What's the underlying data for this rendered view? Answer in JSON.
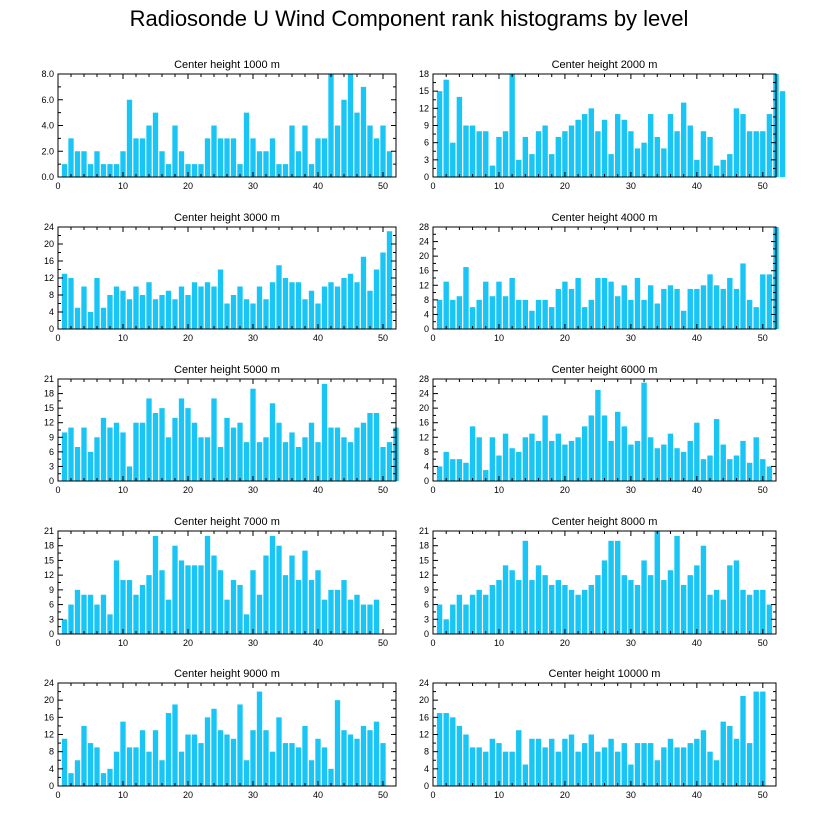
{
  "title": "Radiosonde U Wind Component rank histograms by level",
  "colors": {
    "bar": "#19c5f5",
    "axis": "#000000",
    "background": "#ffffff"
  },
  "chart_data": [
    {
      "type": "bar",
      "title": "Center height 1000 m",
      "xlim": [
        0,
        52
      ],
      "ylim": [
        0,
        8
      ],
      "xticks": [
        0,
        10,
        20,
        30,
        40,
        50
      ],
      "yticks": [
        0,
        2,
        4,
        6,
        8
      ],
      "ytick_labels": [
        "0.0",
        "2.0",
        "4.0",
        "6.0",
        "8.0"
      ],
      "values": [
        1,
        3,
        2,
        2,
        1,
        2,
        1,
        1,
        1,
        2,
        6,
        3,
        3,
        4,
        5,
        2,
        1,
        4,
        2,
        1,
        1,
        1,
        3,
        4,
        3,
        3,
        3,
        1,
        5,
        3,
        2,
        2,
        3,
        1,
        1,
        4,
        2,
        4,
        1,
        3,
        3,
        8,
        4,
        6,
        8,
        5,
        7,
        4,
        3,
        4,
        2
      ]
    },
    {
      "type": "bar",
      "title": "Center height 2000 m",
      "xlim": [
        0,
        52
      ],
      "ylim": [
        0,
        18
      ],
      "xticks": [
        0,
        10,
        20,
        30,
        40,
        50
      ],
      "yticks": [
        0,
        3,
        6,
        9,
        12,
        15,
        18
      ],
      "ytick_labels": [
        "0",
        "3",
        "6",
        "9",
        "12",
        "15",
        "18"
      ],
      "values": [
        15,
        17,
        6,
        14,
        9,
        9,
        8,
        8,
        2,
        7,
        8,
        18,
        3,
        7,
        4,
        8,
        9,
        4,
        7,
        8,
        9,
        10,
        11,
        12,
        8,
        10,
        4,
        11,
        10,
        8,
        5,
        6,
        11,
        7,
        5,
        11,
        8,
        13,
        9,
        3,
        8,
        7,
        2,
        3,
        4,
        12,
        11,
        8,
        8,
        8,
        11,
        18,
        15
      ]
    },
    {
      "type": "bar",
      "title": "Center height 3000 m",
      "xlim": [
        0,
        52
      ],
      "ylim": [
        0,
        24
      ],
      "xticks": [
        0,
        10,
        20,
        30,
        40,
        50
      ],
      "yticks": [
        0,
        4,
        8,
        12,
        16,
        20,
        24
      ],
      "ytick_labels": [
        "0",
        "4",
        "8",
        "12",
        "16",
        "20",
        "24"
      ],
      "values": [
        13,
        12,
        5,
        10,
        4,
        12,
        5,
        8,
        10,
        9,
        7,
        10,
        8,
        11,
        7,
        8,
        9,
        7,
        10,
        8,
        11,
        10,
        11,
        10,
        14,
        6,
        8,
        10,
        7,
        6,
        10,
        7,
        11,
        15,
        12,
        11,
        11,
        7,
        9,
        6,
        10,
        11,
        10,
        12,
        13,
        11,
        17,
        9,
        14,
        18,
        23
      ]
    },
    {
      "type": "bar",
      "title": "Center height 4000 m",
      "xlim": [
        0,
        52
      ],
      "ylim": [
        0,
        28
      ],
      "xticks": [
        0,
        10,
        20,
        30,
        40,
        50
      ],
      "yticks": [
        0,
        4,
        8,
        12,
        16,
        20,
        24,
        28
      ],
      "ytick_labels": [
        "0",
        "4",
        "8",
        "12",
        "16",
        "20",
        "24",
        "28"
      ],
      "values": [
        8,
        13,
        8,
        9,
        17,
        6,
        8,
        13,
        9,
        13,
        9,
        14,
        8,
        8,
        5,
        8,
        8,
        6,
        11,
        13,
        11,
        14,
        6,
        8,
        14,
        14,
        13,
        9,
        12,
        8,
        14,
        8,
        12,
        7,
        11,
        12,
        11,
        5,
        11,
        11,
        12,
        15,
        12,
        11,
        14,
        11,
        18,
        8,
        6,
        15,
        15,
        28
      ]
    },
    {
      "type": "bar",
      "title": "Center height 5000 m",
      "xlim": [
        0,
        52
      ],
      "ylim": [
        0,
        21
      ],
      "xticks": [
        0,
        10,
        20,
        30,
        40,
        50
      ],
      "yticks": [
        0,
        3,
        6,
        9,
        12,
        15,
        18,
        21
      ],
      "ytick_labels": [
        "0",
        "3",
        "6",
        "9",
        "12",
        "15",
        "18",
        "21"
      ],
      "values": [
        10,
        11,
        7,
        11,
        6,
        9,
        13,
        11,
        12,
        10,
        3,
        12,
        12,
        17,
        14,
        15,
        9,
        13,
        17,
        15,
        12,
        9,
        9,
        17,
        7,
        13,
        11,
        12,
        8,
        19,
        8,
        9,
        16,
        12,
        8,
        10,
        7,
        9,
        12,
        8,
        20,
        11,
        11,
        9,
        8,
        11,
        12,
        14,
        14,
        7,
        8,
        11
      ]
    },
    {
      "type": "bar",
      "title": "Center height 6000 m",
      "xlim": [
        0,
        52
      ],
      "ylim": [
        0,
        28
      ],
      "xticks": [
        0,
        10,
        20,
        30,
        40,
        50
      ],
      "yticks": [
        0,
        4,
        8,
        12,
        16,
        20,
        24,
        28
      ],
      "ytick_labels": [
        "0",
        "4",
        "8",
        "12",
        "16",
        "20",
        "24",
        "28"
      ],
      "values": [
        4,
        8,
        6,
        6,
        5,
        15,
        12,
        3,
        12,
        7,
        13,
        9,
        8,
        12,
        13,
        11,
        18,
        11,
        13,
        10,
        11,
        12,
        15,
        18,
        25,
        18,
        11,
        19,
        15,
        10,
        11,
        27,
        12,
        9,
        10,
        13,
        9,
        8,
        11,
        16,
        6,
        7,
        17,
        10,
        6,
        7,
        11,
        5,
        12,
        6,
        4
      ]
    },
    {
      "type": "bar",
      "title": "Center height 7000 m",
      "xlim": [
        0,
        52
      ],
      "ylim": [
        0,
        21
      ],
      "xticks": [
        0,
        10,
        20,
        30,
        40,
        50
      ],
      "yticks": [
        0,
        3,
        6,
        9,
        12,
        15,
        18,
        21
      ],
      "ytick_labels": [
        "0",
        "3",
        "6",
        "9",
        "12",
        "15",
        "18",
        "21"
      ],
      "values": [
        3,
        6,
        9,
        8,
        8,
        6,
        8,
        4,
        15,
        11,
        11,
        8,
        10,
        12,
        20,
        13,
        7,
        18,
        15,
        14,
        14,
        14,
        20,
        16,
        13,
        7,
        11,
        10,
        4,
        13,
        8,
        16,
        20,
        18,
        12,
        16,
        11,
        17,
        11,
        13,
        7,
        9,
        9,
        11,
        7,
        8,
        6,
        6,
        7
      ]
    },
    {
      "type": "bar",
      "title": "Center height 8000 m",
      "xlim": [
        0,
        52
      ],
      "ylim": [
        0,
        21
      ],
      "xticks": [
        0,
        10,
        20,
        30,
        40,
        50
      ],
      "yticks": [
        0,
        3,
        6,
        9,
        12,
        15,
        18,
        21
      ],
      "ytick_labels": [
        "0",
        "3",
        "6",
        "9",
        "12",
        "15",
        "18",
        "21"
      ],
      "values": [
        6,
        3,
        6,
        8,
        6,
        8,
        9,
        8,
        10,
        11,
        14,
        13,
        11,
        19,
        11,
        14,
        12,
        10,
        11,
        10,
        9,
        8,
        9,
        10,
        12,
        15,
        19,
        19,
        12,
        11,
        10,
        15,
        12,
        21,
        11,
        13,
        20,
        10,
        12,
        14,
        18,
        8,
        9,
        7,
        14,
        15,
        9,
        8,
        9,
        9,
        6
      ]
    },
    {
      "type": "bar",
      "title": "Center height 9000 m",
      "xlim": [
        0,
        52
      ],
      "ylim": [
        0,
        24
      ],
      "xticks": [
        0,
        10,
        20,
        30,
        40,
        50
      ],
      "yticks": [
        0,
        4,
        8,
        12,
        16,
        20,
        24
      ],
      "ytick_labels": [
        "0",
        "4",
        "8",
        "12",
        "16",
        "20",
        "24"
      ],
      "values": [
        11,
        3,
        6,
        14,
        10,
        9,
        3,
        4,
        8,
        15,
        9,
        9,
        13,
        8,
        13,
        6,
        17,
        19,
        8,
        12,
        12,
        10,
        16,
        18,
        13,
        12,
        11,
        19,
        6,
        13,
        22,
        13,
        8,
        16,
        10,
        10,
        9,
        14,
        6,
        11,
        9,
        4,
        20,
        13,
        12,
        11,
        14,
        13,
        15,
        10
      ]
    },
    {
      "type": "bar",
      "title": "Center height 10000 m",
      "xlim": [
        0,
        52
      ],
      "ylim": [
        0,
        24
      ],
      "xticks": [
        0,
        10,
        20,
        30,
        40,
        50
      ],
      "yticks": [
        0,
        4,
        8,
        12,
        16,
        20,
        24
      ],
      "ytick_labels": [
        "0",
        "4",
        "8",
        "12",
        "16",
        "20",
        "24"
      ],
      "values": [
        17,
        17,
        16,
        14,
        12,
        9,
        9,
        8,
        11,
        10,
        8,
        8,
        13,
        5,
        11,
        11,
        9,
        11,
        8,
        11,
        12,
        8,
        10,
        12,
        8,
        9,
        11,
        8,
        10,
        5,
        10,
        10,
        10,
        6,
        9,
        11,
        9,
        9,
        10,
        11,
        13,
        8,
        6,
        15,
        14,
        11,
        21,
        10,
        22,
        22
      ]
    }
  ]
}
